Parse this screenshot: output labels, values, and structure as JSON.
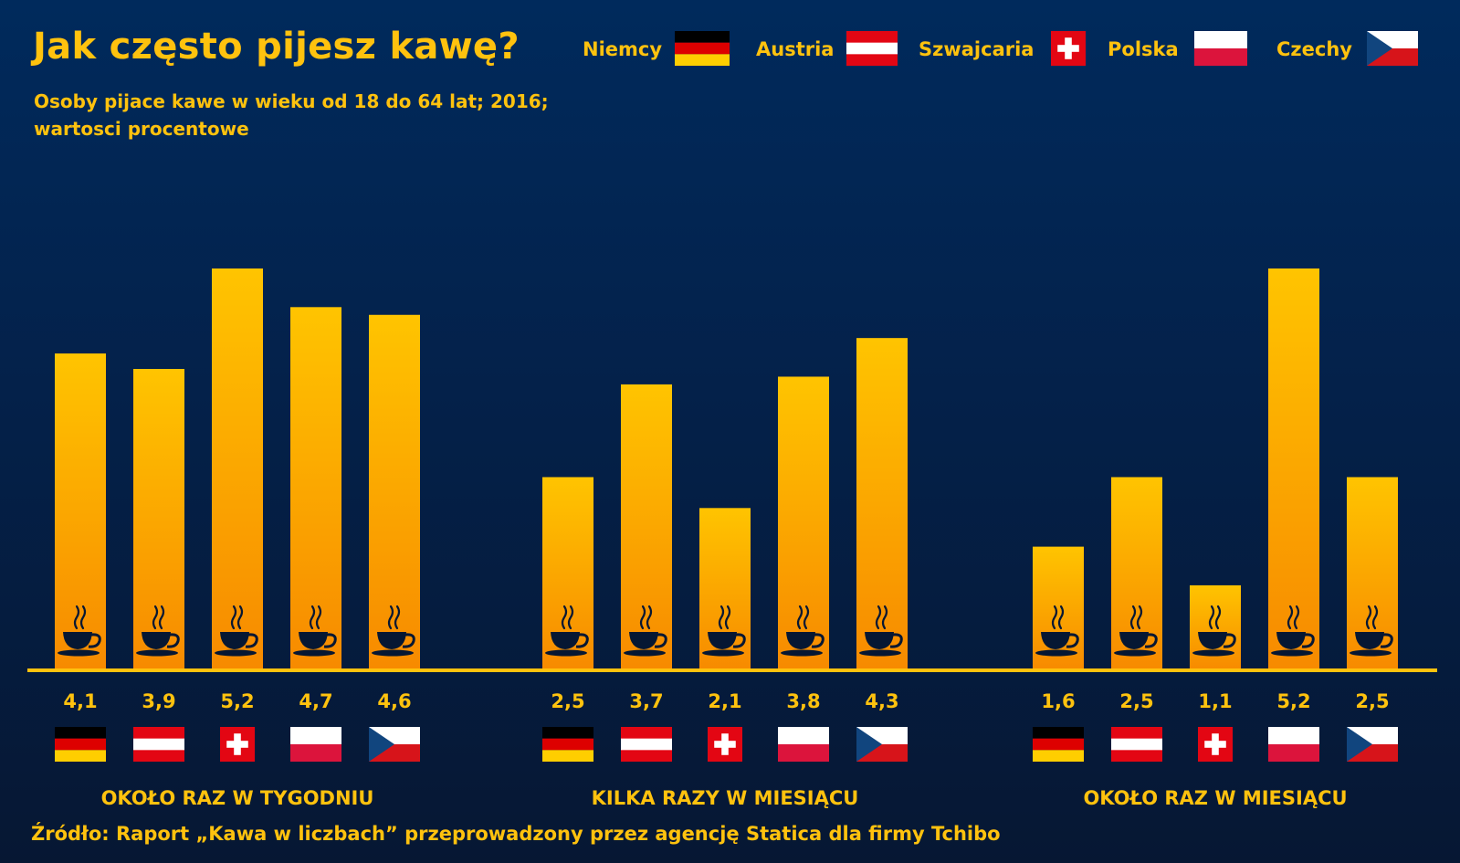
{
  "title": "Jak często pijesz kawę?",
  "subtitle_line1": "Osoby pijace kawe w wieku od 18 do 64 lat; 2016;",
  "subtitle_line2": "wartosci procentowe",
  "source": "Źródło: Raport „Kawa w liczbach” przeprowadzony przez agencję Statica dla firmy Tchibo",
  "colors": {
    "background_top": "#002a5c",
    "background_bottom": "#061733",
    "text": "#ffc20e",
    "bar_top": "#ffc400",
    "bar_bottom": "#f78a00",
    "axis": "#ffc20e",
    "cup": "#061733"
  },
  "legend": [
    {
      "label": "Niemcy",
      "flag": "germany"
    },
    {
      "label": "Austria",
      "flag": "austria"
    },
    {
      "label": "Szwajcaria",
      "flag": "switzerland"
    },
    {
      "label": "Polska",
      "flag": "poland"
    },
    {
      "label": "Czechy",
      "flag": "czech"
    }
  ],
  "chart_data": {
    "type": "bar",
    "title": "Jak często pijesz kawę?",
    "categories": [
      "OKOŁO RAZ W TYGODNIU",
      "KILKA RAZY W MIESIĄCU",
      "OKOŁO RAZ W MIESIĄCU"
    ],
    "series": [
      {
        "name": "Niemcy",
        "flag": "germany",
        "values": [
          4.1,
          2.5,
          1.6
        ],
        "labels": [
          "4,1",
          "2,5",
          "1,6"
        ]
      },
      {
        "name": "Austria",
        "flag": "austria",
        "values": [
          3.9,
          3.7,
          2.5
        ],
        "labels": [
          "3,9",
          "3,7",
          "2,5"
        ]
      },
      {
        "name": "Szwajcaria",
        "flag": "switzerland",
        "values": [
          5.2,
          2.1,
          1.1
        ],
        "labels": [
          "5,2",
          "2,1",
          "1,1"
        ]
      },
      {
        "name": "Polska",
        "flag": "poland",
        "values": [
          4.7,
          3.8,
          5.2
        ],
        "labels": [
          "4,7",
          "3,8",
          "5,2"
        ]
      },
      {
        "name": "Czechy",
        "flag": "czech",
        "values": [
          4.6,
          4.3,
          2.5
        ],
        "labels": [
          "4,6",
          "4,3",
          "2,5"
        ]
      }
    ],
    "ylim": [
      0,
      5.2
    ],
    "grid": false,
    "legend_position": "top-right",
    "bar_icon": "coffee-cup-icon"
  }
}
